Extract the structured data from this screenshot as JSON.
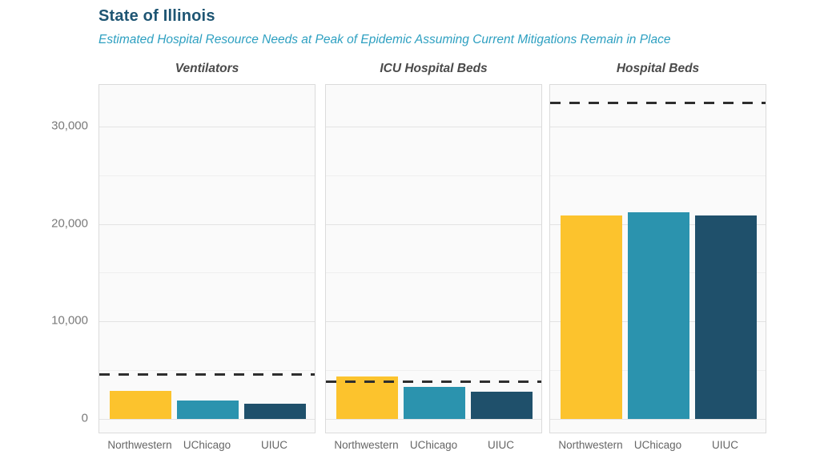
{
  "chart_data": {
    "type": "bar",
    "title": "State of Illinois",
    "subtitle": "Estimated Hospital Resource Needs at Peak of Epidemic Assuming Current Mitigations Remain in Place",
    "categories": [
      "Northwestern",
      "UChicago",
      "UIUC"
    ],
    "facets": [
      {
        "title": "Ventilators",
        "values": [
          2850,
          1850,
          1550
        ],
        "capacity_dashed_line": 4500
      },
      {
        "title": "ICU Hospital Beds",
        "values": [
          4350,
          3230,
          2780
        ],
        "capacity_dashed_line": 3750
      },
      {
        "title": "Hospital Beds",
        "values": [
          20900,
          21200,
          20850
        ],
        "capacity_dashed_line": 32400
      }
    ],
    "y_ticks": [
      {
        "value": 0,
        "label": "0"
      },
      {
        "value": 10000,
        "label": "10,000"
      },
      {
        "value": 20000,
        "label": "20,000"
      },
      {
        "value": 30000,
        "label": "30,000"
      }
    ],
    "ylim": [
      -1600,
      34280
    ],
    "gridline_step": 5000,
    "grid": "horizontal gridlines every 5000, labels every 10000",
    "legend": "none",
    "colors": {
      "bars": [
        "#FCC32D",
        "#2B93AE",
        "#1F506B"
      ],
      "capacity_line": "#2e2e2e",
      "title": "#1E5573",
      "subtitle": "#2EA0C1"
    }
  }
}
